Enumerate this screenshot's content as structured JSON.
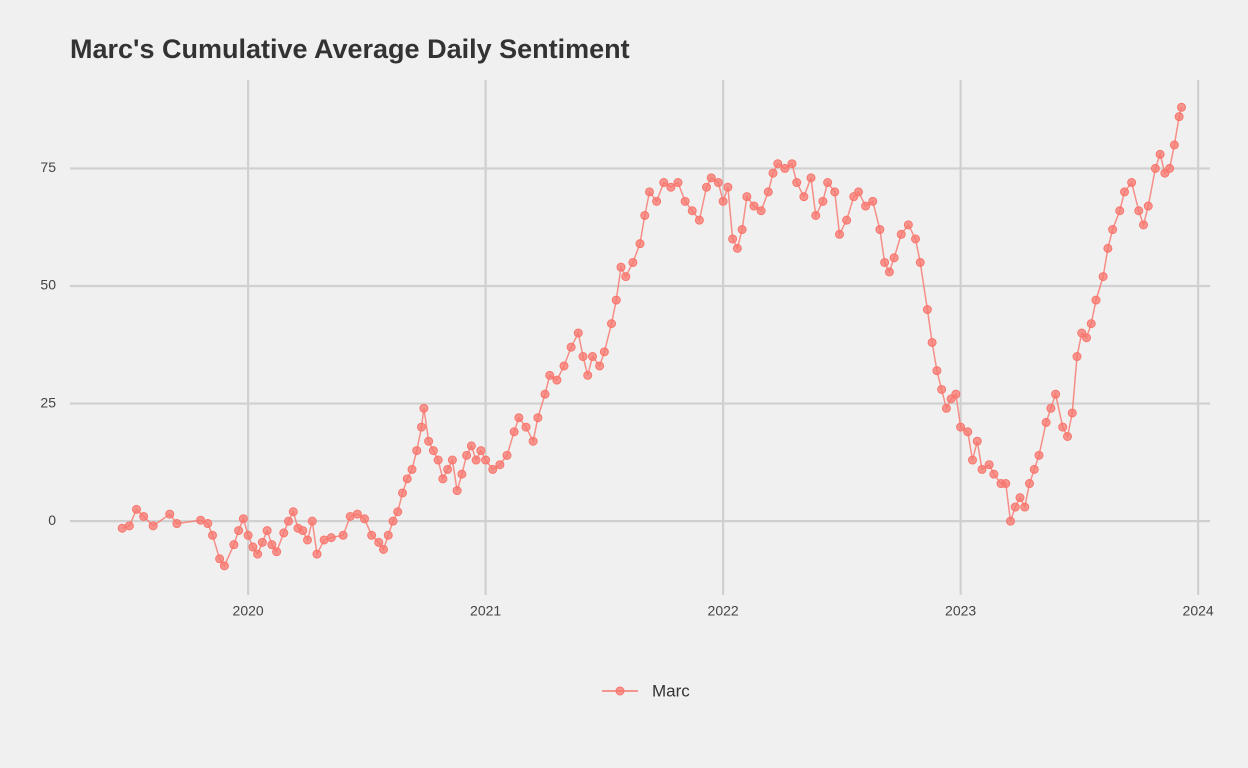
{
  "chart_data": {
    "type": "line",
    "title": "Marc's Cumulative Average Daily Sentiment",
    "x": [
      2019.47,
      2019.5,
      2019.53,
      2019.56,
      2019.6,
      2019.67,
      2019.7,
      2019.8,
      2019.83,
      2019.85,
      2019.88,
      2019.9,
      2019.94,
      2019.96,
      2019.98,
      2020.0,
      2020.02,
      2020.04,
      2020.06,
      2020.08,
      2020.1,
      2020.12,
      2020.15,
      2020.17,
      2020.19,
      2020.21,
      2020.23,
      2020.25,
      2020.27,
      2020.29,
      2020.32,
      2020.35,
      2020.4,
      2020.43,
      2020.46,
      2020.49,
      2020.52,
      2020.55,
      2020.57,
      2020.59,
      2020.61,
      2020.63,
      2020.65,
      2020.67,
      2020.69,
      2020.71,
      2020.73,
      2020.74,
      2020.76,
      2020.78,
      2020.8,
      2020.82,
      2020.84,
      2020.86,
      2020.88,
      2020.9,
      2020.92,
      2020.94,
      2020.96,
      2020.98,
      2021.0,
      2021.03,
      2021.06,
      2021.09,
      2021.12,
      2021.14,
      2021.17,
      2021.2,
      2021.22,
      2021.25,
      2021.27,
      2021.3,
      2021.33,
      2021.36,
      2021.39,
      2021.41,
      2021.43,
      2021.45,
      2021.48,
      2021.5,
      2021.53,
      2021.55,
      2021.57,
      2021.59,
      2021.62,
      2021.65,
      2021.67,
      2021.69,
      2021.72,
      2021.75,
      2021.78,
      2021.81,
      2021.84,
      2021.87,
      2021.9,
      2021.93,
      2021.95,
      2021.98,
      2022.0,
      2022.02,
      2022.04,
      2022.06,
      2022.08,
      2022.1,
      2022.13,
      2022.16,
      2022.19,
      2022.21,
      2022.23,
      2022.26,
      2022.29,
      2022.31,
      2022.34,
      2022.37,
      2022.39,
      2022.42,
      2022.44,
      2022.47,
      2022.49,
      2022.52,
      2022.55,
      2022.57,
      2022.6,
      2022.63,
      2022.66,
      2022.68,
      2022.7,
      2022.72,
      2022.75,
      2022.78,
      2022.81,
      2022.83,
      2022.86,
      2022.88,
      2022.9,
      2022.92,
      2022.94,
      2022.96,
      2022.98,
      2023.0,
      2023.03,
      2023.05,
      2023.07,
      2023.09,
      2023.12,
      2023.14,
      2023.17,
      2023.19,
      2023.21,
      2023.23,
      2023.25,
      2023.27,
      2023.29,
      2023.31,
      2023.33,
      2023.36,
      2023.38,
      2023.4,
      2023.43,
      2023.45,
      2023.47,
      2023.49,
      2023.51,
      2023.53,
      2023.55,
      2023.57,
      2023.6,
      2023.62,
      2023.64,
      2023.67,
      2023.69,
      2023.72,
      2023.75,
      2023.77,
      2023.79,
      2023.82,
      2023.84,
      2023.86,
      2023.88,
      2023.9,
      2023.92,
      2023.93
    ],
    "series": [
      {
        "name": "Marc",
        "color": "#f8766d",
        "values": [
          -1.5,
          -1,
          2.5,
          1,
          -1,
          1.5,
          -0.5,
          0.2,
          -0.5,
          -3,
          -8,
          -9.5,
          -5,
          -2,
          0.5,
          -3,
          -5.5,
          -7,
          -4.5,
          -2,
          -5,
          -6.5,
          -2.5,
          0,
          2,
          -1.5,
          -2,
          -4,
          0,
          -7,
          -4,
          -3.5,
          -3,
          1,
          1.5,
          0.5,
          -3,
          -4.5,
          -6,
          -3,
          0,
          2,
          6,
          9,
          11,
          15,
          20,
          24,
          17,
          15,
          13,
          9,
          11,
          13,
          6.5,
          10,
          14,
          16,
          13,
          15,
          13,
          11,
          12,
          14,
          19,
          22,
          20,
          17,
          22,
          27,
          31,
          30,
          33,
          37,
          40,
          35,
          31,
          35,
          33,
          36,
          42,
          47,
          54,
          52,
          55,
          59,
          65,
          70,
          68,
          72,
          71,
          72,
          68,
          66,
          64,
          71,
          73,
          72,
          68,
          71,
          60,
          58,
          62,
          69,
          67,
          66,
          70,
          74,
          76,
          75,
          76,
          72,
          69,
          73,
          65,
          68,
          72,
          70,
          61,
          64,
          69,
          70,
          67,
          68,
          62,
          55,
          53,
          56,
          61,
          63,
          60,
          55,
          45,
          38,
          32,
          28,
          24,
          26,
          27,
          20,
          19,
          13,
          17,
          11,
          12,
          10,
          8,
          8,
          0,
          3,
          5,
          3,
          8,
          11,
          14,
          21,
          24,
          27,
          20,
          18,
          23,
          35,
          40,
          39,
          42,
          47,
          52,
          58,
          62,
          66,
          70,
          72,
          66,
          63,
          67,
          75,
          78,
          74,
          75,
          80,
          86,
          88
        ]
      }
    ],
    "xlim": [
      2019.25,
      2024.05
    ],
    "xticks": [
      2020,
      2021,
      2022,
      2023,
      2024
    ],
    "ylim": [
      -15.7,
      93.8
    ],
    "yticks": [
      0,
      25,
      50,
      75
    ],
    "grid": true,
    "legend": "bottom"
  }
}
